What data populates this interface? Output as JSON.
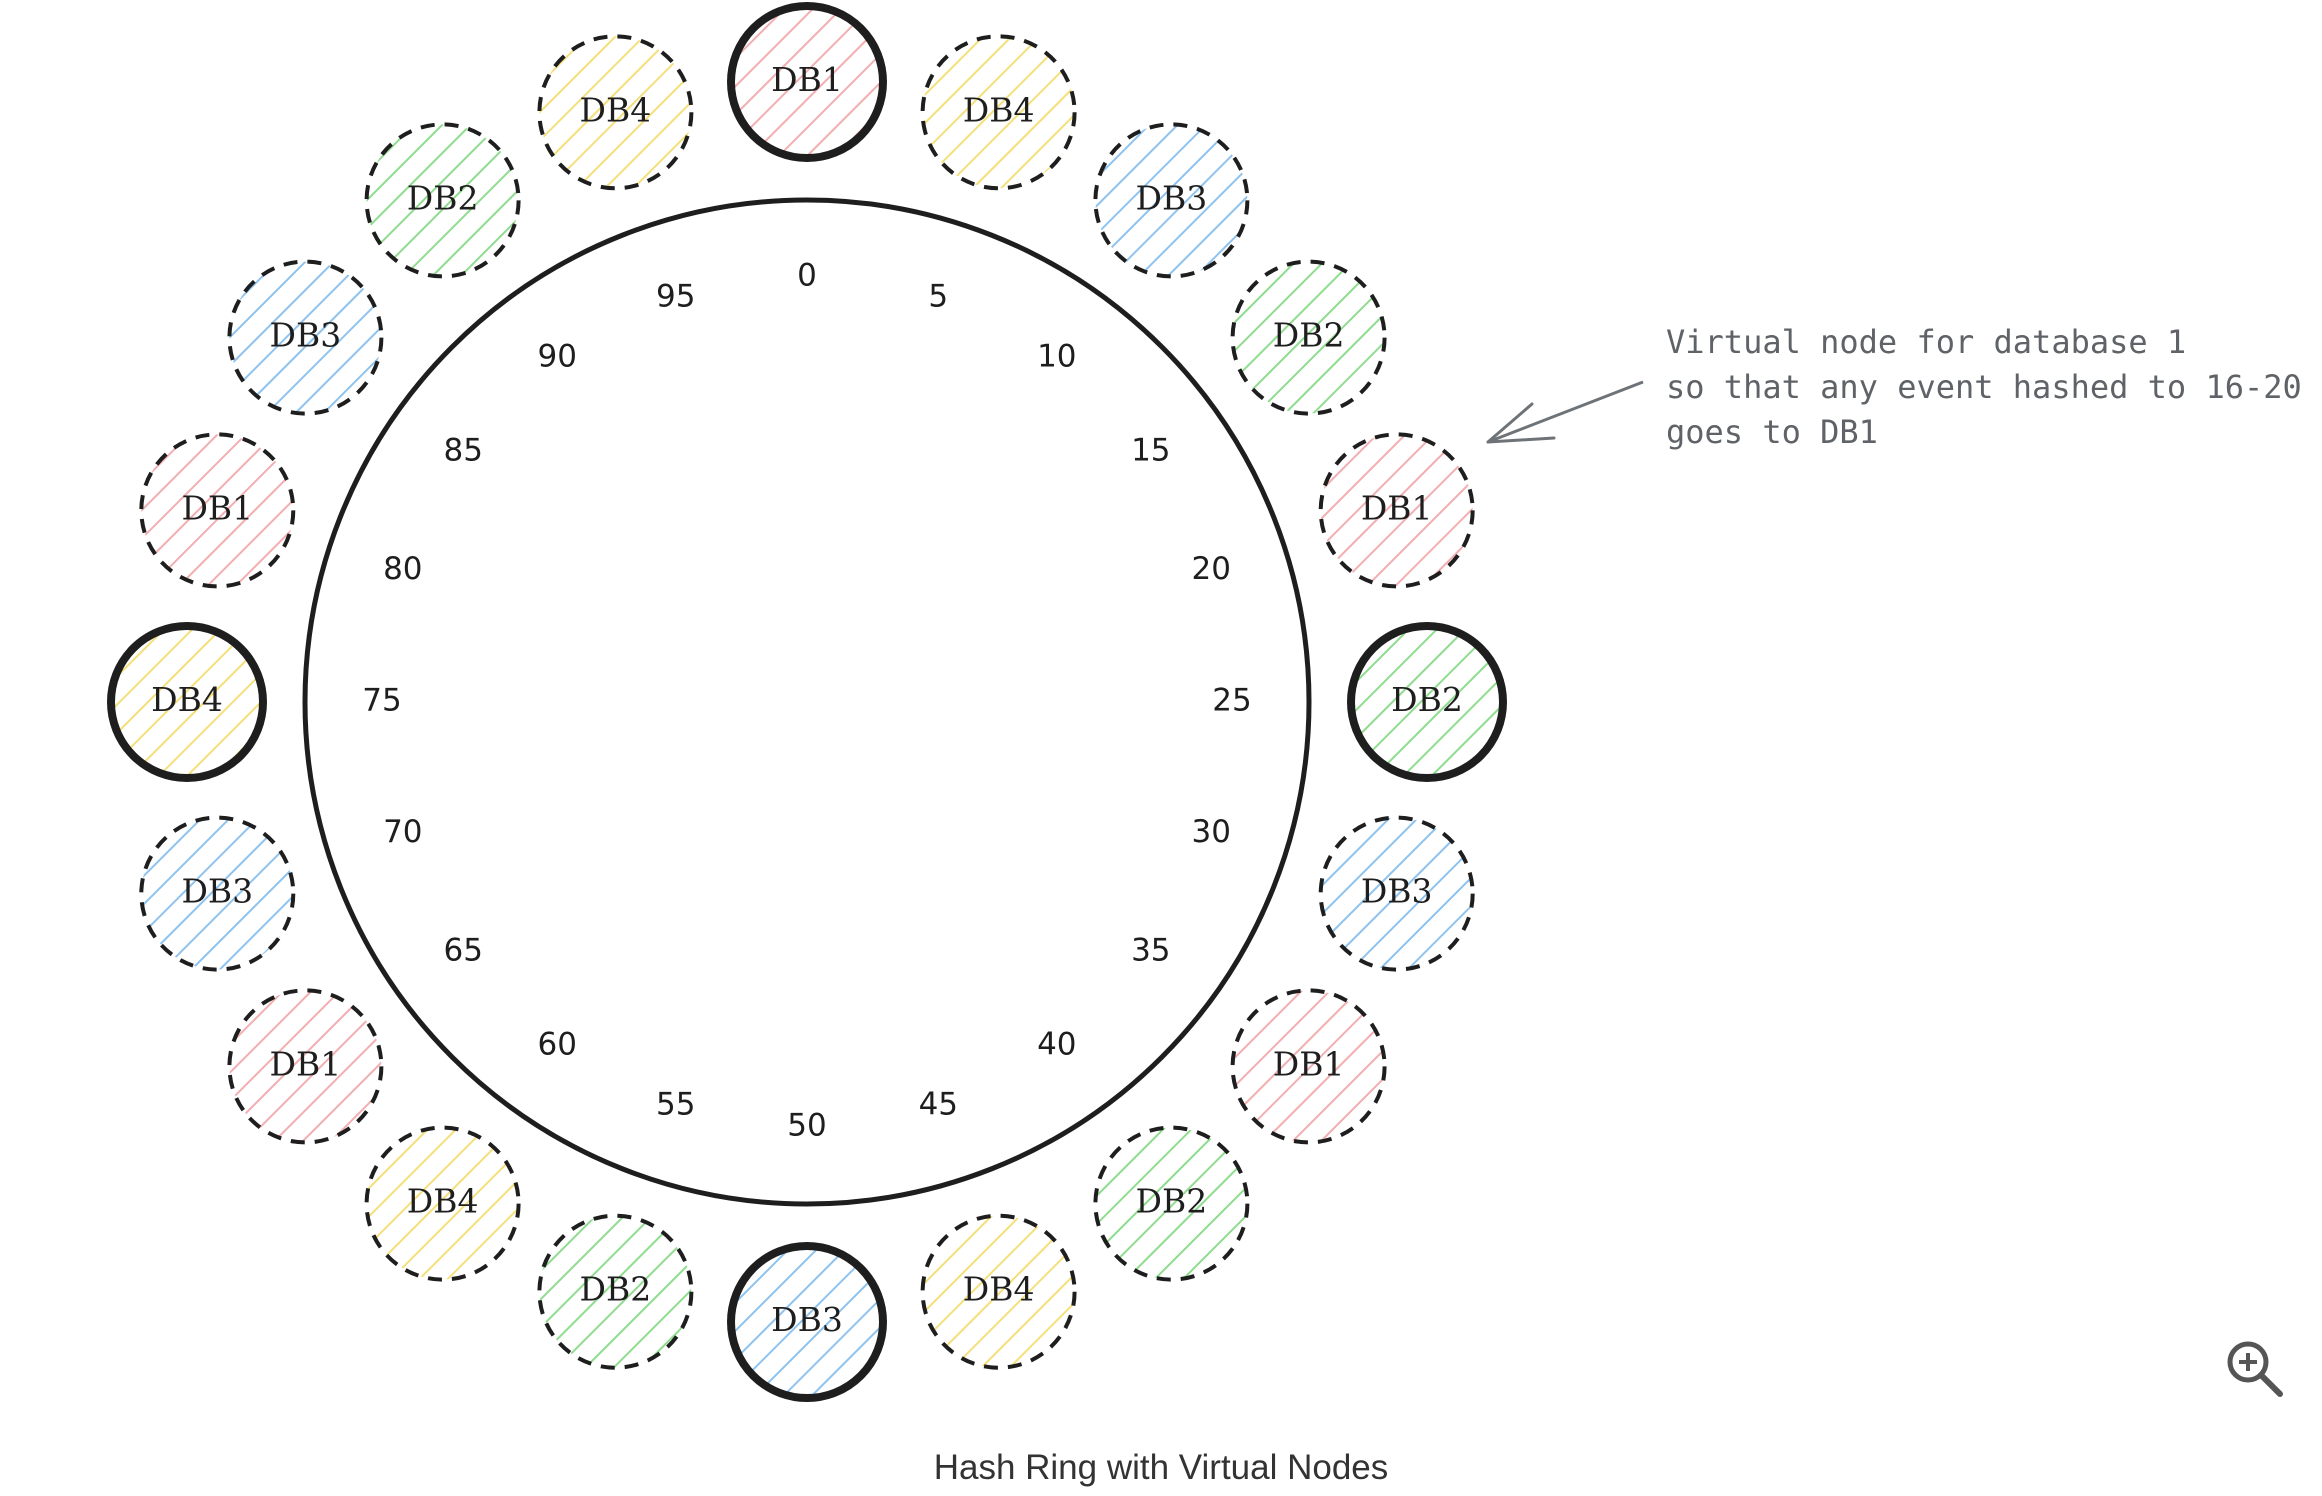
{
  "ring": {
    "tick_labels": [
      "0",
      "5",
      "10",
      "15",
      "20",
      "25",
      "30",
      "35",
      "40",
      "45",
      "50",
      "55",
      "60",
      "65",
      "70",
      "75",
      "80",
      "85",
      "90",
      "95"
    ]
  },
  "nodes": [
    {
      "label": "DB1",
      "db": "db1",
      "primary": true
    },
    {
      "label": "DB4",
      "db": "db4",
      "primary": false
    },
    {
      "label": "DB3",
      "db": "db3",
      "primary": false
    },
    {
      "label": "DB2",
      "db": "db2",
      "primary": false
    },
    {
      "label": "DB1",
      "db": "db1",
      "primary": false
    },
    {
      "label": "DB2",
      "db": "db2",
      "primary": true
    },
    {
      "label": "DB3",
      "db": "db3",
      "primary": false
    },
    {
      "label": "DB1",
      "db": "db1",
      "primary": false
    },
    {
      "label": "DB2",
      "db": "db2",
      "primary": false
    },
    {
      "label": "DB4",
      "db": "db4",
      "primary": false
    },
    {
      "label": "DB3",
      "db": "db3",
      "primary": true
    },
    {
      "label": "DB2",
      "db": "db2",
      "primary": false
    },
    {
      "label": "DB4",
      "db": "db4",
      "primary": false
    },
    {
      "label": "DB1",
      "db": "db1",
      "primary": false
    },
    {
      "label": "DB3",
      "db": "db3",
      "primary": false
    },
    {
      "label": "DB4",
      "db": "db4",
      "primary": true
    },
    {
      "label": "DB1",
      "db": "db1",
      "primary": false
    },
    {
      "label": "DB3",
      "db": "db3",
      "primary": false
    },
    {
      "label": "DB2",
      "db": "db2",
      "primary": false
    },
    {
      "label": "DB4",
      "db": "db4",
      "primary": false
    }
  ],
  "db_colors": {
    "db1": "#f2aeb0",
    "db2": "#8fdc8f",
    "db3": "#8fc3ef",
    "db4": "#f5df7a"
  },
  "annotation": {
    "lines": [
      "Virtual node for database 1",
      "so that any event hashed to 16-20",
      "goes to DB1"
    ],
    "color": "#5f6368"
  },
  "caption": "Hash Ring with Virtual Nodes",
  "zoom": {
    "icon": "zoom-in-icon"
  }
}
